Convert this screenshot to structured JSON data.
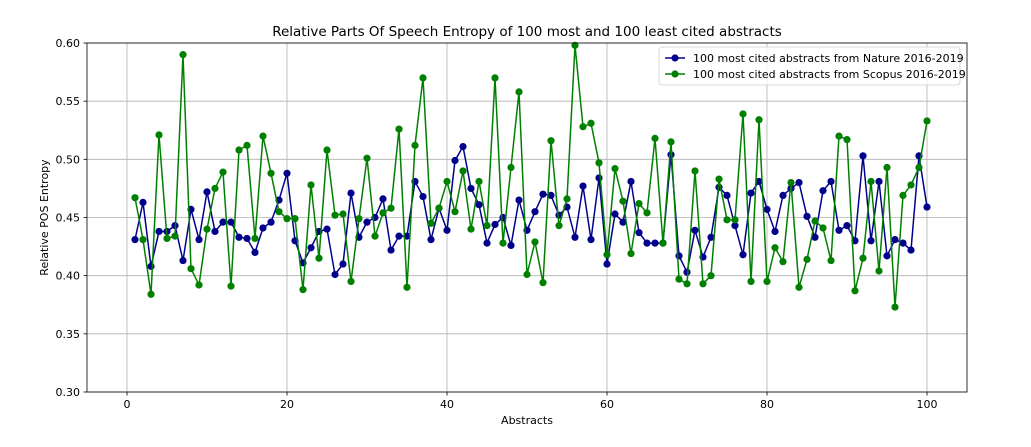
{
  "chart_data": {
    "type": "line",
    "title": "Relative Parts Of Speech Entropy of 100 most and 100 least cited abstracts",
    "xlabel": "Abstracts",
    "ylabel": "Relative POS Entropy",
    "xlim": [
      -5,
      105
    ],
    "ylim": [
      0.3,
      0.6
    ],
    "x_ticks": [
      0,
      20,
      40,
      60,
      80,
      100
    ],
    "x_tick_labels": [
      "0",
      "20",
      "40",
      "60",
      "80",
      "100"
    ],
    "y_ticks": [
      0.3,
      0.35,
      0.4,
      0.45,
      0.5,
      0.55,
      0.6
    ],
    "y_tick_labels": [
      "0.30",
      "0.35",
      "0.40",
      "0.45",
      "0.50",
      "0.55",
      "0.60"
    ],
    "grid": true,
    "legend_position": "top-right",
    "x": [
      1,
      2,
      3,
      4,
      5,
      6,
      7,
      8,
      9,
      10,
      11,
      12,
      13,
      14,
      15,
      16,
      17,
      18,
      19,
      20,
      21,
      22,
      23,
      24,
      25,
      26,
      27,
      28,
      29,
      30,
      31,
      32,
      33,
      34,
      35,
      36,
      37,
      38,
      39,
      40,
      41,
      42,
      43,
      44,
      45,
      46,
      47,
      48,
      49,
      50,
      51,
      52,
      53,
      54,
      55,
      56,
      57,
      58,
      59,
      60,
      61,
      62,
      63,
      64,
      65,
      66,
      67,
      68,
      69,
      70,
      71,
      72,
      73,
      74,
      75,
      76,
      77,
      78,
      79,
      80,
      81,
      82,
      83,
      84,
      85,
      86,
      87,
      88,
      89,
      90,
      91,
      92,
      93,
      94,
      95,
      96,
      97,
      98,
      99,
      100
    ],
    "series": [
      {
        "name": "100 most cited abstracts from Nature 2016-2019",
        "color": "#00008b",
        "values": [
          0.431,
          0.463,
          0.408,
          0.438,
          0.438,
          0.443,
          0.413,
          0.457,
          0.431,
          0.472,
          0.438,
          0.446,
          0.446,
          0.433,
          0.432,
          0.42,
          0.441,
          0.446,
          0.465,
          0.488,
          0.43,
          0.411,
          0.424,
          0.438,
          0.44,
          0.401,
          0.41,
          0.471,
          0.433,
          0.446,
          0.45,
          0.466,
          0.422,
          0.434,
          0.434,
          0.481,
          0.468,
          0.431,
          0.458,
          0.439,
          0.499,
          0.511,
          0.475,
          0.461,
          0.428,
          0.444,
          0.45,
          0.426,
          0.465,
          0.439,
          0.455,
          0.47,
          0.469,
          0.452,
          0.459,
          0.433,
          0.477,
          0.431,
          0.484,
          0.41,
          0.453,
          0.446,
          0.481,
          0.437,
          0.428,
          0.428,
          0.428,
          0.504,
          0.417,
          0.403,
          0.439,
          0.416,
          0.433,
          0.476,
          0.469,
          0.443,
          0.418,
          0.471,
          0.481,
          0.457,
          0.438,
          0.469,
          0.475,
          0.48,
          0.451,
          0.433,
          0.473,
          0.481,
          0.439,
          0.443,
          0.43,
          0.503,
          0.43,
          0.481,
          0.417,
          0.431,
          0.428,
          0.422,
          0.503,
          0.459
        ]
      },
      {
        "name": "100 most cited abstracts from Scopus 2016-2019",
        "color": "#008000",
        "values": [
          0.467,
          0.431,
          0.384,
          0.521,
          0.432,
          0.434,
          0.59,
          0.406,
          0.392,
          0.44,
          0.475,
          0.489,
          0.391,
          0.508,
          0.512,
          0.432,
          0.52,
          0.488,
          0.455,
          0.449,
          0.449,
          0.388,
          0.478,
          0.415,
          0.508,
          0.452,
          0.453,
          0.395,
          0.449,
          0.501,
          0.434,
          0.454,
          0.458,
          0.526,
          0.39,
          0.512,
          0.57,
          0.445,
          0.458,
          0.481,
          0.455,
          0.49,
          0.44,
          0.481,
          0.443,
          0.57,
          0.428,
          0.493,
          0.558,
          0.401,
          0.429,
          0.394,
          0.516,
          0.443,
          0.466,
          0.598,
          0.528,
          0.531,
          0.497,
          0.418,
          0.492,
          0.464,
          0.419,
          0.462,
          0.454,
          0.518,
          0.428,
          0.515,
          0.397,
          0.393,
          0.49,
          0.393,
          0.4,
          0.483,
          0.448,
          0.448,
          0.539,
          0.395,
          0.534,
          0.395,
          0.424,
          0.412,
          0.48,
          0.39,
          0.414,
          0.447,
          0.441,
          0.413,
          0.52,
          0.517,
          0.387,
          0.415,
          0.481,
          0.404,
          0.493,
          0.373,
          0.469,
          0.478,
          0.493,
          0.533
        ]
      }
    ]
  }
}
